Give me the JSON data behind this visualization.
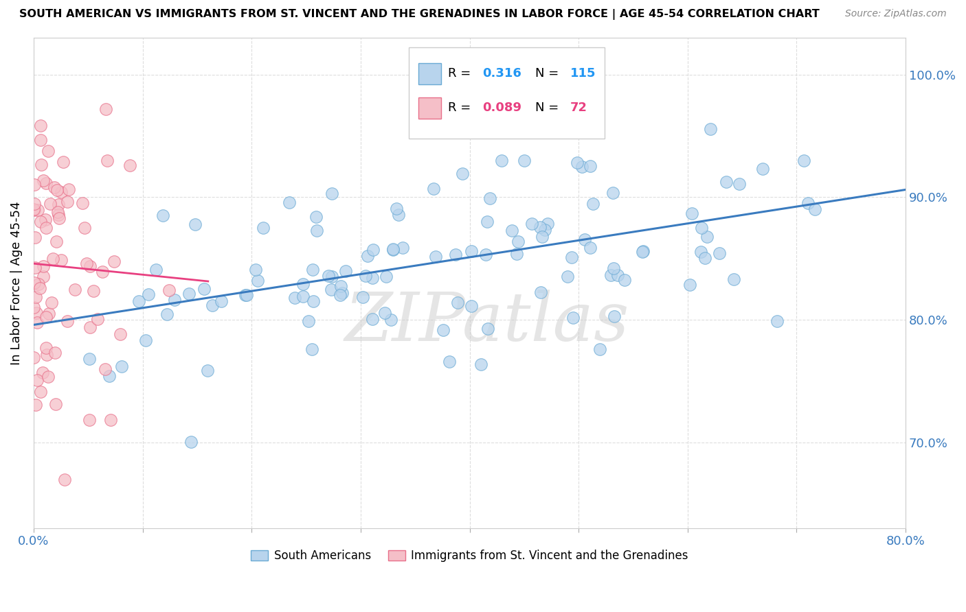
{
  "title": "SOUTH AMERICAN VS IMMIGRANTS FROM ST. VINCENT AND THE GRENADINES IN LABOR FORCE | AGE 45-54 CORRELATION CHART",
  "source": "Source: ZipAtlas.com",
  "ylabel_labels": [
    "70.0%",
    "80.0%",
    "90.0%",
    "100.0%"
  ],
  "ylabel_values": [
    0.7,
    0.8,
    0.9,
    1.0
  ],
  "xlim": [
    0.0,
    0.8
  ],
  "ylim": [
    0.63,
    1.03
  ],
  "legend_label1": "South Americans",
  "legend_label2": "Immigrants from St. Vincent and the Grenadines",
  "R1": 0.316,
  "N1": 115,
  "R2": 0.089,
  "N2": 72,
  "color_blue": "#b8d4ed",
  "color_blue_edge": "#6aaad4",
  "color_blue_line": "#3a7bbf",
  "color_pink": "#f5bfc8",
  "color_pink_edge": "#e8708a",
  "color_pink_line": "#e84080",
  "color_r1": "#2196F3",
  "color_r2": "#e84080",
  "color_n1": "#2196F3",
  "color_n2": "#e84080",
  "watermark": "ZIPatlas",
  "grid_color": "#dddddd"
}
